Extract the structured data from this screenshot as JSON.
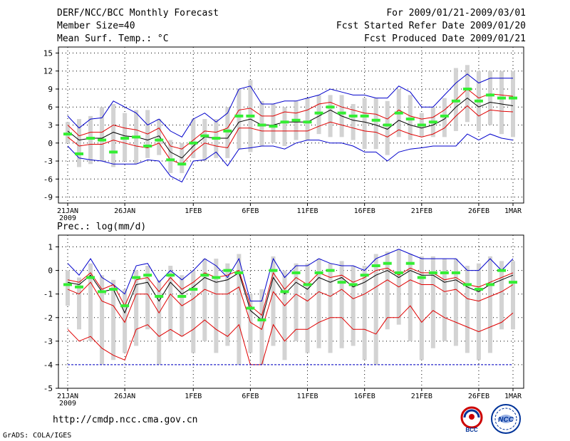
{
  "header": {
    "title": "DERF/NCC/BCC Monthly Forecast",
    "member_size": "Member Size=40",
    "variable": "Mean Surf. Temp.: °C",
    "period": "For 2009/01/21-2009/03/01",
    "refer_date": "Fcst Started Refer Date 2009/01/20",
    "produced_date": "Fcst Produced Date 2009/01/21"
  },
  "footer": {
    "url": "http://cmdp.ncc.cma.gov.cn",
    "credit": "GrADS: COLA/IGES",
    "logo_bcc": "BCC",
    "logo_ncc": "NCC"
  },
  "colors": {
    "mean": "#000000",
    "std_band": "#e00000",
    "envelope": "#0000cc",
    "obs_or_median": "#33ee33",
    "spread_bar": "#d3d3d3",
    "grid": "#000000"
  },
  "chart_data": [
    {
      "type": "line",
      "title": "Mean Surf. Temp.: °C",
      "x_tick_labels": [
        "21JAN",
        "26JAN",
        "1FEB",
        "6FEB",
        "11FEB",
        "16FEB",
        "21FEB",
        "26FEB",
        "1MAR"
      ],
      "x_tick_days": [
        0,
        5,
        11,
        16,
        21,
        26,
        31,
        36,
        39
      ],
      "x_year_label": "2009",
      "ylim": [
        -10,
        16
      ],
      "yticks": [
        -9,
        -6,
        -3,
        0,
        3,
        6,
        9,
        12,
        15
      ],
      "days": 40,
      "series": [
        {
          "name": "ensemble mean",
          "values": [
            2.0,
            0.5,
            0.8,
            0.8,
            1.8,
            1.2,
            1.0,
            0.5,
            1.2,
            -1.5,
            -2.5,
            -0.5,
            1.0,
            0.8,
            0.8,
            3.5,
            4.0,
            3.0,
            3.0,
            3.5,
            3.5,
            3.5,
            4.5,
            5.5,
            4.5,
            3.8,
            3.5,
            3.0,
            2.3,
            3.8,
            3.0,
            2.5,
            3.0,
            4.0,
            6.0,
            7.5,
            6.0,
            6.8,
            6.5,
            6.2
          ]
        },
        {
          "name": "mean + std",
          "values": [
            3.0,
            1.2,
            1.8,
            1.8,
            3.0,
            2.5,
            2.2,
            1.5,
            2.5,
            -0.5,
            -1.0,
            0.5,
            2.0,
            1.8,
            2.5,
            5.5,
            5.8,
            4.5,
            4.5,
            5.2,
            5.0,
            5.5,
            6.5,
            6.8,
            6.0,
            5.5,
            5.0,
            4.8,
            4.0,
            5.5,
            4.5,
            4.0,
            4.3,
            5.5,
            7.2,
            9.0,
            7.5,
            8.2,
            8.0,
            7.8
          ]
        },
        {
          "name": "mean - std",
          "values": [
            1.0,
            -0.5,
            -0.2,
            -0.2,
            0.5,
            0.0,
            -0.5,
            -0.8,
            0.0,
            -2.8,
            -3.5,
            -1.5,
            0.0,
            -0.5,
            -0.8,
            2.5,
            2.5,
            2.0,
            2.0,
            2.0,
            2.0,
            2.0,
            2.8,
            3.5,
            3.0,
            2.5,
            2.0,
            1.8,
            1.0,
            2.2,
            1.5,
            1.0,
            1.5,
            2.5,
            4.5,
            6.2,
            4.5,
            5.5,
            5.3,
            5.2
          ]
        },
        {
          "name": "maximum",
          "values": [
            4.5,
            2.5,
            4.0,
            4.2,
            7.0,
            6.0,
            5.0,
            3.0,
            4.0,
            2.0,
            1.0,
            4.0,
            5.0,
            3.5,
            5.0,
            9.0,
            9.5,
            6.5,
            6.5,
            7.0,
            7.0,
            7.5,
            8.0,
            9.0,
            8.5,
            8.0,
            8.0,
            7.5,
            7.5,
            9.5,
            8.5,
            6.0,
            6.0,
            8.0,
            10.0,
            11.5,
            10.0,
            10.8,
            10.8,
            10.8
          ]
        },
        {
          "name": "minimum",
          "values": [
            -0.5,
            -2.5,
            -2.8,
            -3.0,
            -3.5,
            -3.5,
            -3.5,
            -2.8,
            -3.0,
            -5.5,
            -6.5,
            -3.0,
            -2.8,
            -1.5,
            -3.8,
            -1.0,
            -0.8,
            -0.5,
            -0.5,
            -1.0,
            0.0,
            0.5,
            0.5,
            0.0,
            0.0,
            -0.5,
            -1.5,
            -1.5,
            -3.0,
            -1.5,
            -1.0,
            -0.8,
            -0.5,
            -0.5,
            -0.5,
            1.5,
            0.5,
            1.5,
            0.8,
            0.5
          ]
        },
        {
          "name": "marker",
          "values": [
            1.5,
            -1.8,
            0.8,
            0.5,
            -1.5,
            0.8,
            1.0,
            -0.5,
            0.5,
            -2.8,
            -3.5,
            0.0,
            1.2,
            0.8,
            2.0,
            4.5,
            4.5,
            3.0,
            2.8,
            3.5,
            3.8,
            3.5,
            5.0,
            6.0,
            5.0,
            4.5,
            4.5,
            3.8,
            3.0,
            5.0,
            4.0,
            3.0,
            3.5,
            4.5,
            7.0,
            9.0,
            7.0,
            8.0,
            7.5,
            7.5
          ]
        },
        {
          "name": "spread top",
          "values": [
            3.5,
            4.0,
            4.5,
            6.0,
            6.5,
            5.0,
            5.5,
            5.5,
            4.0,
            0.5,
            0.0,
            4.0,
            4.0,
            4.0,
            6.0,
            9.0,
            10.5,
            7.0,
            6.5,
            6.0,
            7.0,
            7.5,
            8.0,
            8.0,
            8.0,
            6.5,
            7.5,
            7.5,
            7.0,
            9.0,
            8.0,
            5.0,
            6.0,
            7.5,
            12.5,
            13.0,
            12.0,
            12.0,
            12.0,
            12.0
          ]
        },
        {
          "name": "spread bottom",
          "values": [
            0.0,
            -4.0,
            -3.5,
            -3.0,
            -4.0,
            -3.0,
            -3.5,
            -2.5,
            -2.0,
            -5.0,
            -5.0,
            -2.5,
            -3.0,
            -2.5,
            -2.5,
            -1.0,
            -1.5,
            -0.5,
            0.0,
            -0.5,
            0.5,
            0.5,
            1.5,
            1.0,
            1.0,
            0.5,
            -1.0,
            -1.0,
            -2.0,
            1.0,
            0.5,
            1.0,
            1.0,
            1.0,
            2.0,
            3.5,
            2.0,
            3.0,
            1.5,
            1.0
          ]
        }
      ]
    },
    {
      "type": "line",
      "title": "Prec.: log(mm/d)",
      "x_tick_labels": [
        "21JAN",
        "26JAN",
        "1FEB",
        "6FEB",
        "11FEB",
        "16FEB",
        "21FEB",
        "26FEB",
        "1MAR"
      ],
      "x_tick_days": [
        0,
        5,
        11,
        16,
        21,
        26,
        31,
        36,
        39
      ],
      "x_year_label": "2009",
      "ylim": [
        -5,
        1.5
      ],
      "yticks": [
        -5,
        -4,
        -3,
        -2,
        -1,
        0,
        1
      ],
      "days": 40,
      "series": [
        {
          "name": "ensemble mean",
          "values": [
            -0.5,
            -0.6,
            -0.2,
            -0.9,
            -0.8,
            -1.8,
            -0.6,
            -0.5,
            -1.3,
            -0.5,
            -1.0,
            -0.7,
            -0.3,
            -0.5,
            -0.4,
            -0.1,
            -1.7,
            -2.1,
            -0.3,
            -1.0,
            -0.5,
            -0.8,
            -0.3,
            -0.5,
            -0.3,
            -0.7,
            -0.5,
            -0.2,
            0.0,
            -0.3,
            0.0,
            -0.2,
            -0.2,
            -0.5,
            -0.4,
            -0.7,
            -0.9,
            -0.6,
            -0.4,
            -0.2
          ]
        },
        {
          "name": "mean + std",
          "values": [
            -0.4,
            -0.5,
            -0.1,
            -0.8,
            -0.6,
            -1.5,
            -0.4,
            -0.3,
            -0.9,
            -0.3,
            -0.8,
            -0.5,
            -0.1,
            -0.3,
            -0.2,
            0.0,
            -1.5,
            -1.9,
            -0.1,
            -0.8,
            -0.3,
            -0.6,
            -0.1,
            -0.3,
            -0.2,
            -0.5,
            -0.3,
            0.0,
            0.1,
            -0.2,
            0.1,
            -0.1,
            -0.1,
            -0.4,
            -0.3,
            -0.6,
            -0.7,
            -0.5,
            -0.3,
            -0.1
          ]
        },
        {
          "name": "mean - std",
          "values": [
            -0.8,
            -1.0,
            -0.5,
            -1.3,
            -1.5,
            -2.2,
            -1.0,
            -1.0,
            -1.8,
            -1.0,
            -1.5,
            -1.2,
            -0.8,
            -1.0,
            -1.0,
            -0.7,
            -2.2,
            -2.5,
            -0.9,
            -1.5,
            -1.0,
            -1.3,
            -0.9,
            -1.1,
            -0.8,
            -1.2,
            -1.0,
            -0.7,
            -0.4,
            -0.7,
            -0.4,
            -0.6,
            -0.6,
            -0.9,
            -0.8,
            -1.2,
            -1.3,
            -1.1,
            -0.9,
            -0.6
          ]
        },
        {
          "name": "maximum",
          "values": [
            0.3,
            -0.2,
            0.5,
            -0.3,
            -0.6,
            -1.0,
            0.2,
            0.3,
            -0.5,
            0.0,
            -0.4,
            0.0,
            0.5,
            0.2,
            -0.3,
            0.5,
            -1.3,
            -1.3,
            0.5,
            -0.3,
            0.2,
            0.2,
            0.5,
            0.3,
            0.2,
            0.2,
            0.0,
            0.5,
            0.7,
            0.9,
            0.7,
            0.5,
            0.5,
            0.5,
            0.5,
            0.0,
            0.0,
            0.5,
            0.0,
            0.5
          ]
        },
        {
          "name": "minimum",
          "values": [
            -2.5,
            -3.0,
            -2.8,
            -3.3,
            -3.6,
            -3.8,
            -2.5,
            -2.3,
            -2.8,
            -2.5,
            -2.8,
            -2.5,
            -2.1,
            -2.5,
            -2.8,
            -2.3,
            -4.0,
            -4.0,
            -2.3,
            -3.0,
            -2.5,
            -2.5,
            -2.2,
            -2.0,
            -2.0,
            -2.5,
            -2.5,
            -2.7,
            -2.0,
            -2.0,
            -1.5,
            -2.2,
            -1.7,
            -2.0,
            -2.2,
            -2.4,
            -2.6,
            -2.4,
            -2.2,
            -1.8
          ]
        },
        {
          "name": "lower limit",
          "values": [
            -4.0,
            -4.0,
            -4.0,
            -4.0,
            -4.0,
            -4.0,
            -4.0,
            -4.0,
            -4.0,
            -4.0,
            -4.0,
            -4.0,
            -4.0,
            -4.0,
            -4.0,
            -4.0,
            -4.0,
            -4.0,
            -4.0,
            -4.0,
            -4.0,
            -4.0,
            -4.0,
            -4.0,
            -4.0,
            -4.0,
            -4.0,
            -4.0,
            -4.0,
            -4.0,
            -4.0,
            -4.0,
            -4.0,
            -4.0,
            -4.0,
            -4.0,
            -4.0,
            -4.0,
            -4.0,
            -4.0
          ]
        },
        {
          "name": "marker",
          "values": [
            -0.6,
            -0.7,
            -0.3,
            -0.9,
            -0.8,
            -1.5,
            -0.3,
            -0.2,
            -1.1,
            -0.2,
            -1.1,
            -0.8,
            -0.2,
            -0.3,
            0.0,
            -0.1,
            -1.6,
            -2.1,
            0.0,
            -0.9,
            -0.1,
            -0.6,
            -0.1,
            0.0,
            -0.5,
            -0.6,
            -0.2,
            0.2,
            0.3,
            -0.1,
            0.3,
            -0.3,
            -0.1,
            -0.1,
            -0.1,
            -0.6,
            -0.8,
            -0.6,
            0.0,
            -0.5
          ]
        },
        {
          "name": "spread top",
          "values": [
            0.0,
            -0.3,
            0.3,
            -0.2,
            -0.4,
            -0.8,
            0.0,
            0.2,
            -0.4,
            0.2,
            -0.2,
            0.0,
            0.5,
            0.5,
            0.3,
            0.7,
            -1.0,
            -0.8,
            0.6,
            0.0,
            0.3,
            0.3,
            0.5,
            0.3,
            0.4,
            0.2,
            0.2,
            0.7,
            0.8,
            0.9,
            0.7,
            0.6,
            0.6,
            0.5,
            0.5,
            0.2,
            0.3,
            0.6,
            0.4,
            0.4
          ]
        },
        {
          "name": "spread bottom",
          "values": [
            -1.5,
            -2.5,
            -3.0,
            -4.0,
            -3.8,
            -3.5,
            -3.2,
            -2.5,
            -4.0,
            -3.0,
            -2.8,
            -3.5,
            -3.0,
            -3.5,
            -3.2,
            -4.0,
            -3.5,
            -4.0,
            -3.2,
            -3.8,
            -3.0,
            -3.5,
            -3.3,
            -3.5,
            -3.3,
            -3.2,
            -3.8,
            -4.0,
            -2.5,
            -2.3,
            -3.0,
            -3.8,
            -3.3,
            -3.0,
            -3.2,
            -3.5,
            -3.8,
            -3.5,
            -2.5,
            -2.5
          ]
        }
      ]
    }
  ]
}
